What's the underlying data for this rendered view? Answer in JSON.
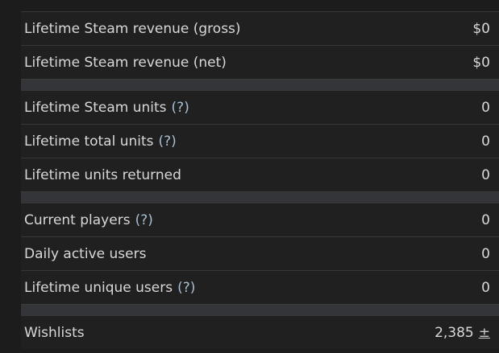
{
  "groups": [
    [
      {
        "label": "Lifetime Steam revenue (gross)",
        "value": "$0"
      },
      {
        "label": "Lifetime Steam revenue (net)",
        "value": "$0"
      }
    ],
    [
      {
        "label": "Lifetime Steam units",
        "help": "(?)",
        "value": "0"
      },
      {
        "label": "Lifetime total units",
        "help": "(?)",
        "value": "0"
      },
      {
        "label": "Lifetime units returned",
        "value": "0"
      }
    ],
    [
      {
        "label": "Current players",
        "help": "(?)",
        "value": "0"
      },
      {
        "label": "Daily active users",
        "value": "0"
      },
      {
        "label": "Lifetime unique users",
        "help": "(?)",
        "value": "0"
      }
    ],
    [
      {
        "label": "Wishlists",
        "value": "2,385",
        "extra": "±"
      }
    ]
  ]
}
